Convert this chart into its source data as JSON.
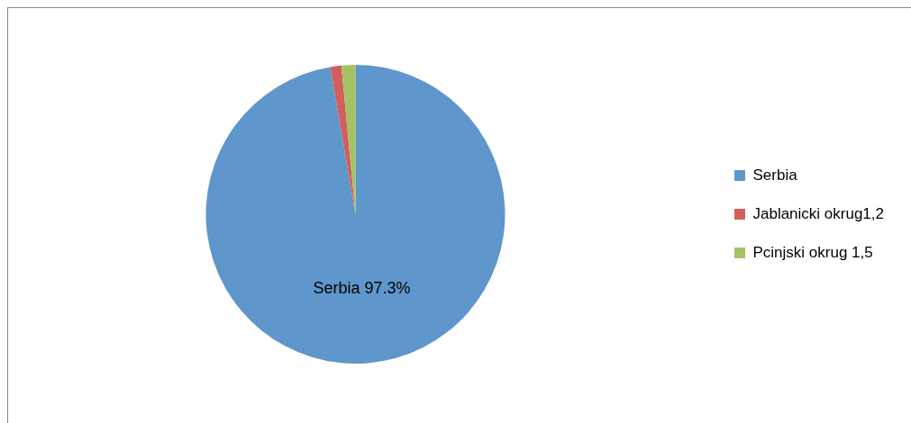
{
  "chart_data": {
    "type": "pie",
    "categories": [
      "Serbia",
      "Jablanicki okrug1,2",
      "Pcinjski okrug 1,5"
    ],
    "values": [
      97.3,
      1.2,
      1.5
    ],
    "colors": [
      "#5f96cb",
      "#d1605c",
      "#a6c264"
    ],
    "value_labels": [
      "Serbia 97.3%",
      null,
      null
    ],
    "legend": "right"
  }
}
